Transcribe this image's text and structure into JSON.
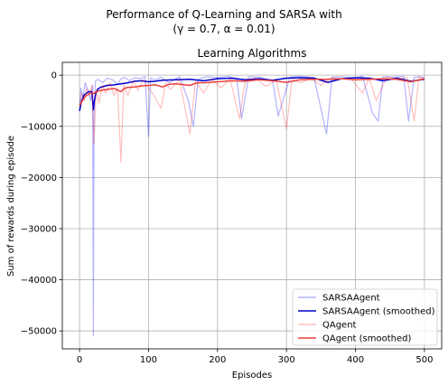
{
  "figure": {
    "suptitle_line1": "Performance of Q-Learning and SARSA with",
    "suptitle_line2": "(γ = 0.7, α = 0.01)"
  },
  "chart_data": {
    "type": "line",
    "title": "Learning Algorithms",
    "xlabel": "Episodes",
    "ylabel": "Sum of rewards during episode",
    "xlim": [
      -25,
      525
    ],
    "ylim": [
      -53500,
      2500
    ],
    "xticks": [
      0,
      100,
      200,
      300,
      400,
      500
    ],
    "yticks": [
      0,
      -10000,
      -20000,
      -30000,
      -40000,
      -50000
    ],
    "ytick_labels": [
      "0",
      "−10000",
      "−20000",
      "−30000",
      "−40000",
      "−50000"
    ],
    "grid": true,
    "legend_position": "lower-right",
    "series": [
      {
        "name": "SARSAAgent",
        "color": "#0000ff",
        "alpha": 0.3,
        "style": "raw",
        "x": [
          0,
          2,
          5,
          8,
          12,
          16,
          19,
          20,
          21,
          23,
          27,
          33,
          40,
          48,
          55,
          60,
          66,
          72,
          80,
          88,
          95,
          100,
          103,
          110,
          118,
          130,
          145,
          158,
          165,
          172,
          185,
          200,
          215,
          228,
          235,
          245,
          262,
          280,
          288,
          305,
          320,
          340,
          358,
          366,
          380,
          398,
          410,
          425,
          433,
          440,
          455,
          470,
          477,
          485,
          493,
          500
        ],
        "values": [
          -7000,
          -2500,
          -4500,
          -1500,
          -3000,
          -5000,
          -2000,
          -51000,
          -8000,
          -1200,
          -800,
          -1500,
          -600,
          -900,
          -1800,
          -700,
          -400,
          -1100,
          -500,
          -700,
          -300,
          -12000,
          -600,
          -900,
          -400,
          -1500,
          -300,
          -5000,
          -10000,
          -800,
          -300,
          -500,
          -200,
          -700,
          -8500,
          -300,
          -400,
          -1200,
          -8000,
          -400,
          -200,
          -500,
          -11500,
          -400,
          -300,
          -600,
          -200,
          -7500,
          -9000,
          -300,
          -400,
          -200,
          -9000,
          -400,
          -300,
          -500
        ]
      },
      {
        "name": "SARSAAgent (smoothed)",
        "color": "#0000cc",
        "alpha": 1.0,
        "style": "smoothed",
        "x": [
          0,
          3,
          6,
          10,
          14,
          18,
          20,
          21,
          23,
          26,
          30,
          35,
          40,
          50,
          60,
          70,
          80,
          90,
          100,
          110,
          120,
          140,
          160,
          180,
          200,
          220,
          240,
          260,
          280,
          300,
          320,
          340,
          360,
          380,
          400,
          420,
          440,
          460,
          480,
          500
        ],
        "values": [
          -7000,
          -5000,
          -4000,
          -3500,
          -3200,
          -3300,
          -6800,
          -5500,
          -3800,
          -2800,
          -2400,
          -2200,
          -2000,
          -1900,
          -1700,
          -1500,
          -1200,
          -1100,
          -1300,
          -1200,
          -1000,
          -900,
          -800,
          -1100,
          -700,
          -600,
          -900,
          -700,
          -1000,
          -600,
          -500,
          -600,
          -1400,
          -700,
          -500,
          -600,
          -1100,
          -600,
          -1200,
          -800
        ]
      },
      {
        "name": "QAgent",
        "color": "#ff0000",
        "alpha": 0.25,
        "style": "raw",
        "x": [
          0,
          3,
          7,
          10,
          14,
          18,
          21,
          24,
          28,
          33,
          38,
          44,
          50,
          55,
          60,
          64,
          70,
          78,
          85,
          92,
          100,
          108,
          118,
          125,
          132,
          145,
          160,
          168,
          180,
          192,
          205,
          218,
          232,
          240,
          255,
          270,
          285,
          300,
          308,
          320,
          335,
          350,
          365,
          380,
          395,
          410,
          420,
          430,
          445,
          460,
          475,
          485,
          492,
          500
        ],
        "values": [
          -6000,
          -3500,
          -5000,
          -2500,
          -4000,
          -2000,
          -13500,
          -3000,
          -5500,
          -2000,
          -3500,
          -1500,
          -4000,
          -2500,
          -17000,
          -1800,
          -4000,
          -1200,
          -3000,
          -900,
          -2500,
          -4000,
          -6500,
          -1500,
          -2800,
          -900,
          -11500,
          -1200,
          -3500,
          -800,
          -2500,
          -700,
          -8500,
          -1000,
          -600,
          -2200,
          -900,
          -10500,
          -700,
          -1500,
          -600,
          -2000,
          -500,
          -700,
          -900,
          -3500,
          -600,
          -5000,
          -400,
          -700,
          -500,
          -9000,
          -400,
          -600
        ]
      },
      {
        "name": "QAgent (smoothed)",
        "color": "#e8413c",
        "alpha": 1.0,
        "style": "smoothed",
        "x": [
          0,
          4,
          8,
          12,
          16,
          20,
          25,
          30,
          40,
          50,
          60,
          65,
          70,
          80,
          90,
          100,
          110,
          120,
          130,
          140,
          160,
          170,
          180,
          200,
          220,
          240,
          260,
          280,
          300,
          320,
          340,
          360,
          380,
          400,
          420,
          440,
          460,
          480,
          500
        ],
        "values": [
          -6000,
          -5000,
          -4200,
          -3800,
          -3500,
          -3600,
          -3200,
          -3000,
          -2800,
          -2600,
          -3200,
          -2600,
          -2400,
          -2300,
          -2100,
          -2000,
          -1900,
          -2300,
          -1800,
          -1700,
          -2000,
          -1500,
          -1500,
          -1300,
          -1100,
          -1200,
          -900,
          -1100,
          -1400,
          -900,
          -800,
          -800,
          -700,
          -900,
          -800,
          -700,
          -800,
          -1300,
          -700
        ]
      }
    ]
  }
}
